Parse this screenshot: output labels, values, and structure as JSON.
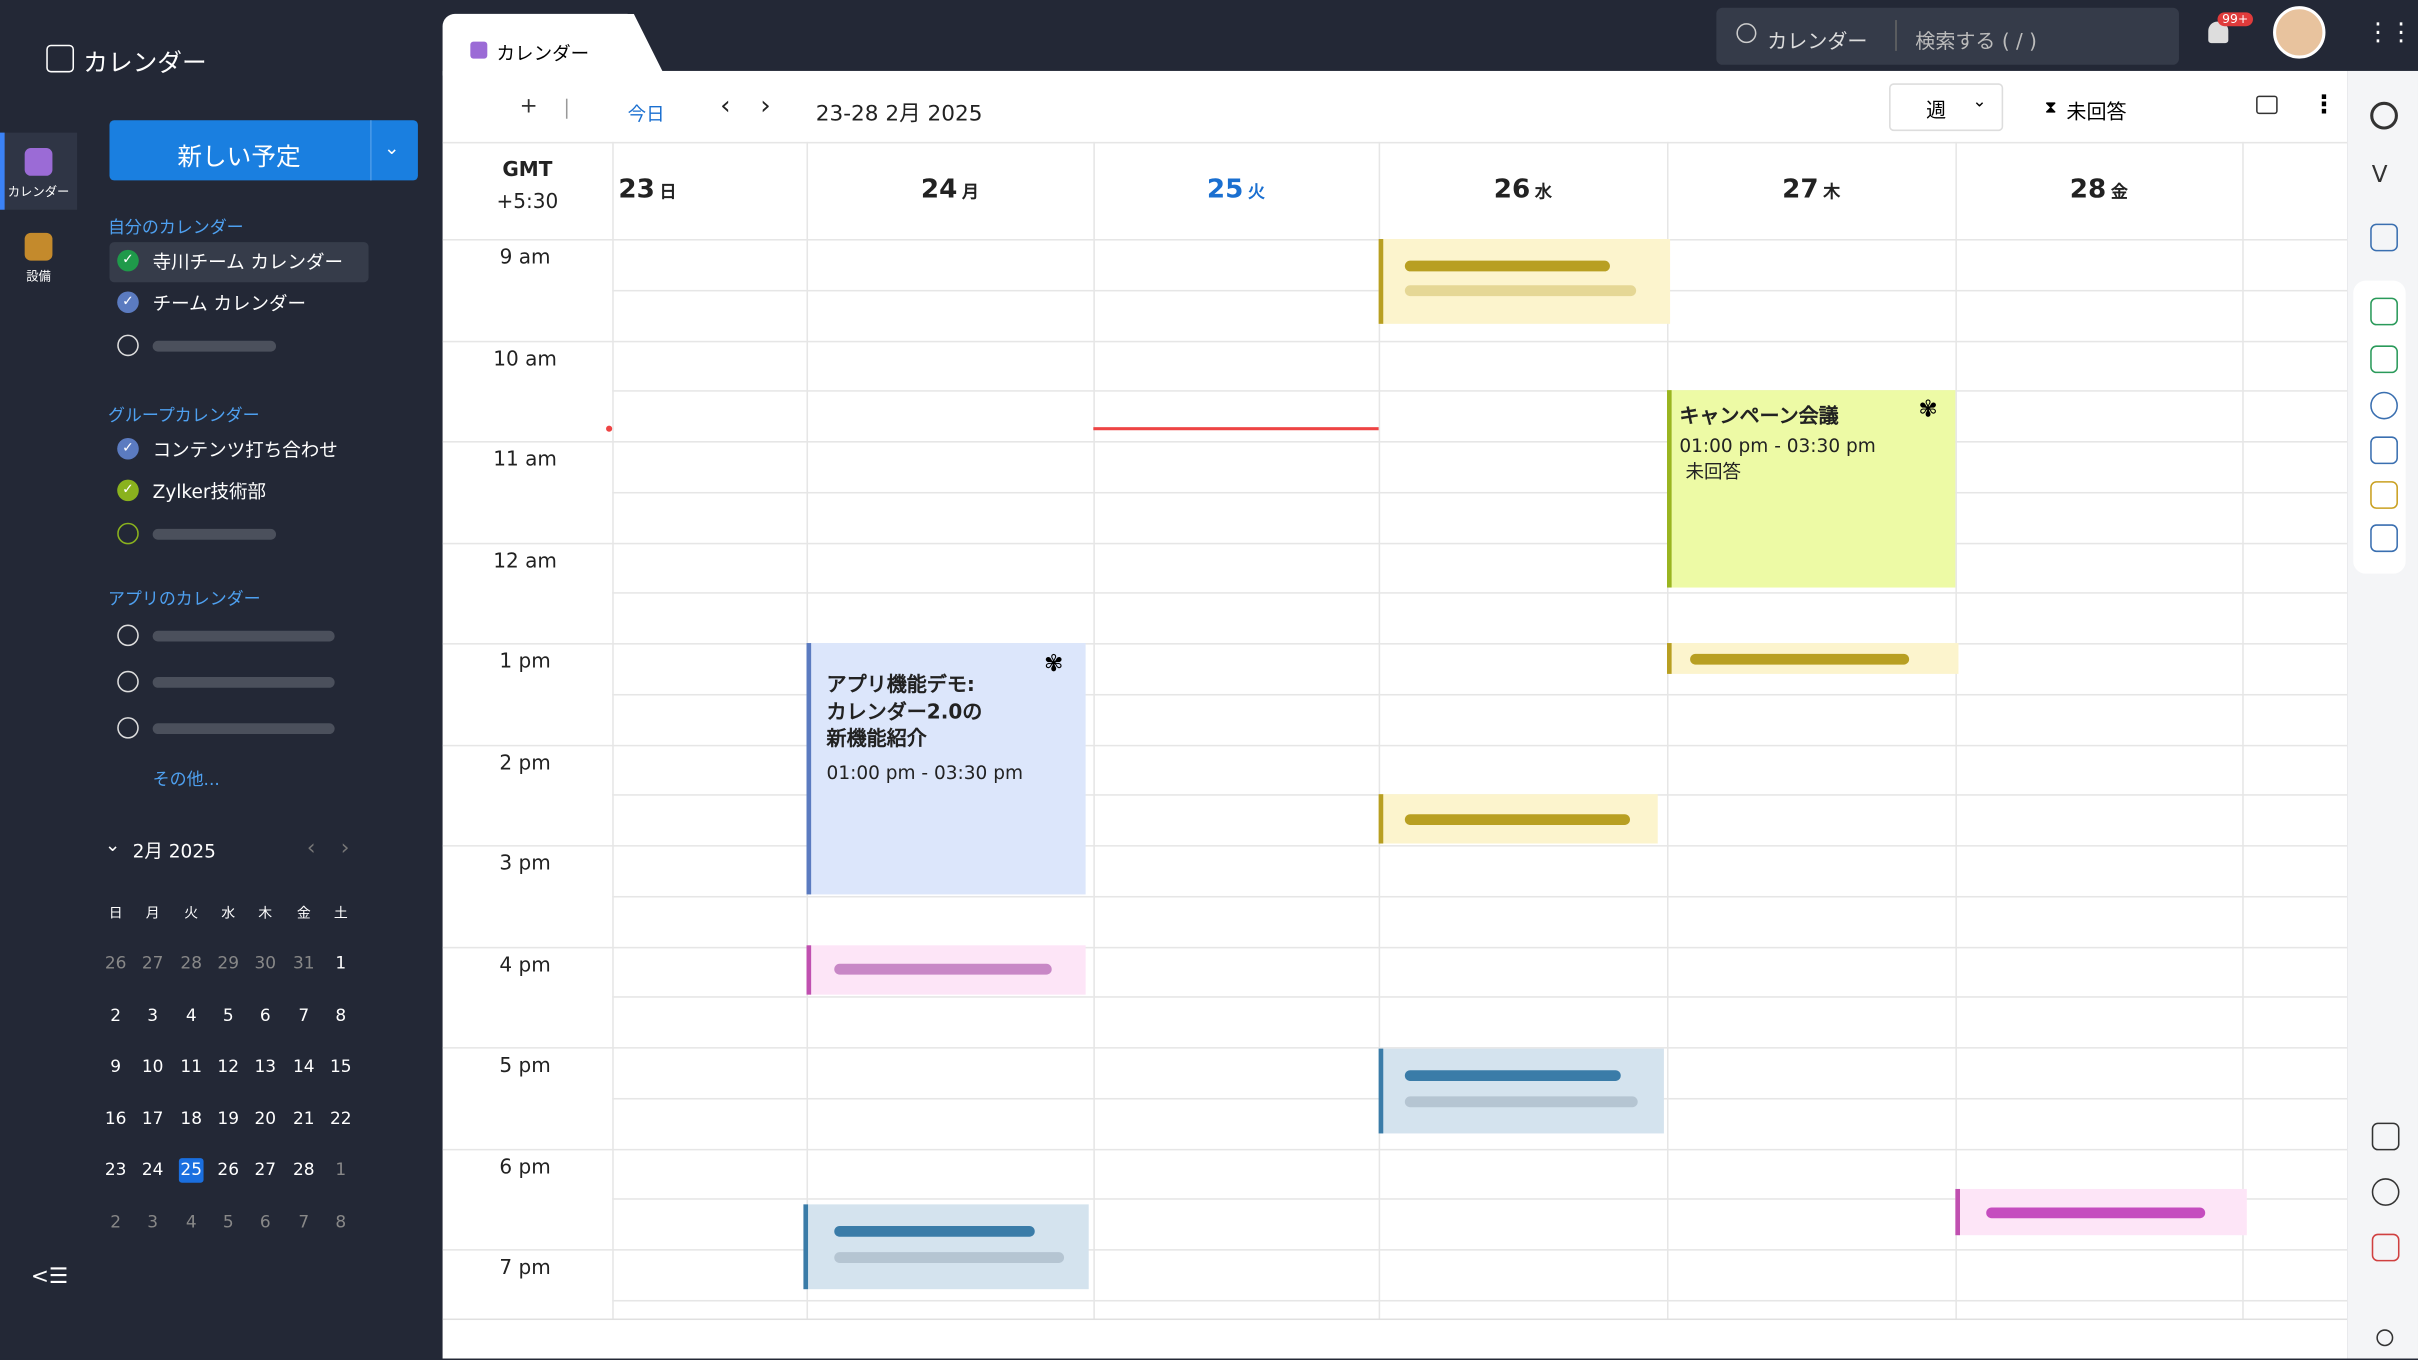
{
  "app_title": "カレンダー",
  "rail": [
    "カレンダー",
    "設備"
  ],
  "new_event": "新しい予定",
  "sidebar": [
    {
      "title": "自分のカレンダー",
      "calendars": [
        "寺川チーム カレンダー",
        "チーム カレンダー"
      ]
    },
    {
      "title": "グループカレンダー",
      "calendars": [
        "コンテンツ打ち合わせ",
        "Zylker技術部"
      ]
    },
    {
      "title": "アプリのカレンダー",
      "calendars": []
    }
  ],
  "more": "その他...",
  "mini_calendar": {
    "month": "2月 2025",
    "weekdays": [
      "日",
      "月",
      "火",
      "水",
      "木",
      "金",
      "土"
    ],
    "weeks": [
      [
        26,
        27,
        28,
        29,
        30,
        31,
        1
      ],
      [
        2,
        3,
        4,
        5,
        6,
        7,
        8
      ],
      [
        9,
        10,
        11,
        12,
        13,
        14,
        15
      ],
      [
        16,
        17,
        18,
        19,
        20,
        21,
        22
      ],
      [
        23,
        24,
        25,
        26,
        27,
        28,
        1
      ],
      [
        2,
        3,
        4,
        5,
        6,
        7,
        8
      ]
    ],
    "today": 25
  },
  "tab": "カレンダー",
  "search_scope": "カレンダー",
  "search_placeholder": "検索する ( / )",
  "notification_badge": "99+",
  "toolbar": {
    "today": "今日",
    "range": "23-28 2月 2025",
    "view": "週",
    "filter": "未回答"
  },
  "timezone": [
    "GMT",
    "+5:30"
  ],
  "days": [
    {
      "date": 23,
      "weekday": "日"
    },
    {
      "date": 24,
      "weekday": "月"
    },
    {
      "date": 25,
      "weekday": "火"
    },
    {
      "date": 26,
      "weekday": "水"
    },
    {
      "date": 27,
      "weekday": "木"
    },
    {
      "date": 28,
      "weekday": "金"
    }
  ],
  "times": [
    "9 am",
    "10 am",
    "11 am",
    "12 am",
    "1 pm",
    "2 pm",
    "3 pm",
    "4 pm",
    "5 pm",
    "6 pm",
    "7 pm"
  ],
  "events": [
    {
      "title": [
        "キャンペーン会議"
      ],
      "time": "01:00 pm - 03:30 pm",
      "status": "未回答"
    },
    {
      "title": [
        "アプリ機能デモ:",
        "カレンダー2.0の",
        "新機能紹介"
      ],
      "time": "01:00 pm - 03:30 pm"
    }
  ]
}
